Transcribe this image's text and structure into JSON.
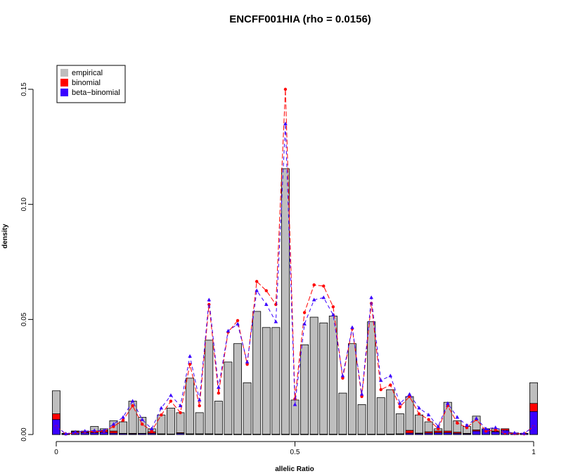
{
  "chart_data": {
    "type": "bar",
    "title": "ENCFF001HIA (rho = 0.0156)",
    "xlabel": "allelic Ratio",
    "ylabel": "density",
    "xlim": [
      -0.01,
      1.01
    ],
    "ylim": [
      0,
      0.15
    ],
    "x_ticks": [
      {
        "v": 0,
        "label": "0"
      },
      {
        "v": 0.5,
        "label": "0.5"
      },
      {
        "v": 1,
        "label": "1"
      }
    ],
    "y_ticks": [
      {
        "v": 0,
        "label": "0.00"
      },
      {
        "v": 0.05,
        "label": "0.05"
      },
      {
        "v": 0.1,
        "label": "0.10"
      },
      {
        "v": 0.15,
        "label": "0.15"
      }
    ],
    "legend": {
      "position": "top-left",
      "entries": [
        {
          "label": "empirical",
          "color": "#bebebe"
        },
        {
          "label": "binomial",
          "color": "#ff0000"
        },
        {
          "label": "beta−binomial",
          "color": "#3a00ff"
        }
      ]
    },
    "colors": {
      "empirical": "#bebebe",
      "binomial": "#ff0000",
      "beta_binomial": "#3a00ff",
      "bar_border": "#000000"
    },
    "bin_width": 0.02,
    "x": [
      0,
      0.02,
      0.04,
      0.06,
      0.08,
      0.1,
      0.12,
      0.14,
      0.16,
      0.18,
      0.2,
      0.22,
      0.24,
      0.26,
      0.28,
      0.3,
      0.32,
      0.34,
      0.36,
      0.38,
      0.4,
      0.42,
      0.44,
      0.46,
      0.48,
      0.5,
      0.52,
      0.54,
      0.56,
      0.58,
      0.6,
      0.62,
      0.64,
      0.66,
      0.68,
      0.7,
      0.72,
      0.74,
      0.76,
      0.78,
      0.8,
      0.82,
      0.84,
      0.86,
      0.88,
      0.9,
      0.92,
      0.94,
      0.96,
      0.98,
      1.0
    ],
    "series": [
      {
        "name": "empirical",
        "values": [
          0.019,
          0.0005,
          0.0015,
          0.0015,
          0.0035,
          0.0025,
          0.006,
          0.0055,
          0.0145,
          0.0075,
          0.0025,
          0.0085,
          0.0115,
          0.0095,
          0.0245,
          0.0095,
          0.041,
          0.0145,
          0.0315,
          0.0395,
          0.0225,
          0.0535,
          0.0465,
          0.0465,
          0.1155,
          0.015,
          0.039,
          0.051,
          0.0485,
          0.0515,
          0.018,
          0.0395,
          0.013,
          0.049,
          0.016,
          0.0195,
          0.009,
          0.0165,
          0.0085,
          0.0055,
          0.0025,
          0.014,
          0.006,
          0.0035,
          0.008,
          0.002,
          0.0025,
          0.001,
          0.0005,
          0.0005,
          0.0225
        ]
      },
      {
        "name": "binomial",
        "values": [
          0.009,
          0.0004,
          0.0015,
          0.0012,
          0.0015,
          0.0018,
          0.0015,
          0.0005,
          0.0005,
          0.0005,
          0.0012,
          0.0003,
          0.0002,
          0.0008,
          0.0003,
          0.0003,
          0.0003,
          0.0002,
          0.0001,
          0.0001,
          0.0001,
          0.0001,
          0.0001,
          0.0001,
          0.0001,
          0.0001,
          0.0001,
          0.0001,
          0.0001,
          0.0001,
          0.0001,
          0.0001,
          0.0001,
          0.0001,
          0.0001,
          0.0002,
          0.0003,
          0.0018,
          0.0006,
          0.0012,
          0.0015,
          0.0015,
          0.001,
          0.0005,
          0.002,
          0.0015,
          0.0015,
          0.0025,
          0.0007,
          0.0005,
          0.0135
        ]
      },
      {
        "name": "beta−binomial",
        "values": [
          0.0065,
          0.0003,
          0.0012,
          0.0008,
          0.0008,
          0.001,
          0.0006,
          0.0004,
          0.0003,
          0.0004,
          0.0005,
          0.0002,
          0.0002,
          0.0005,
          0.0002,
          0.0002,
          0.0002,
          0.0001,
          0.0001,
          0.0001,
          0.0001,
          0.0001,
          0.0001,
          0.0001,
          0.0001,
          0.0001,
          0.0001,
          0.0001,
          0.0001,
          0.0001,
          0.0001,
          0.0001,
          0.0001,
          0.0001,
          0.0001,
          0.0001,
          0.0002,
          0.0006,
          0.0004,
          0.0006,
          0.0008,
          0.0008,
          0.0005,
          0.0003,
          0.0015,
          0.0025,
          0.0012,
          0.0018,
          0.0005,
          0.0004,
          0.01
        ]
      }
    ],
    "lines": [
      {
        "name": "binomial",
        "x": [
          0,
          0.02,
          0.04,
          0.06,
          0.08,
          0.1,
          0.12,
          0.14,
          0.16,
          0.18,
          0.2,
          0.22,
          0.24,
          0.26,
          0.28,
          0.3,
          0.32,
          0.34,
          0.36,
          0.38,
          0.4,
          0.42,
          0.44,
          0.46,
          0.48,
          0.5,
          0.52,
          0.54,
          0.56,
          0.58,
          0.6,
          0.62,
          0.64,
          0.66,
          0.68,
          0.7,
          0.72,
          0.74,
          0.76,
          0.78,
          0.8,
          0.82,
          0.84,
          0.86,
          0.88,
          0.9,
          0.92,
          0.94,
          0.96,
          0.98,
          1.0
        ],
        "y": [
          0.0035,
          0.0002,
          0.0008,
          0.0012,
          0.0014,
          0.0014,
          0.0035,
          0.0062,
          0.0125,
          0.0045,
          0.0015,
          0.0085,
          0.0145,
          0.0095,
          0.0305,
          0.0125,
          0.0565,
          0.018,
          0.0445,
          0.0495,
          0.0305,
          0.0665,
          0.0625,
          0.0565,
          0.15,
          0.0155,
          0.053,
          0.065,
          0.0645,
          0.0555,
          0.0245,
          0.046,
          0.0165,
          0.057,
          0.0195,
          0.0215,
          0.012,
          0.0165,
          0.009,
          0.0065,
          0.0025,
          0.0125,
          0.005,
          0.003,
          0.0065,
          0.0015,
          0.002,
          0.0007,
          0.0004,
          0.0003,
          0.0035
        ]
      },
      {
        "name": "beta−binomial",
        "x": [
          0,
          0.02,
          0.04,
          0.06,
          0.08,
          0.1,
          0.12,
          0.14,
          0.16,
          0.18,
          0.2,
          0.22,
          0.24,
          0.26,
          0.28,
          0.3,
          0.32,
          0.34,
          0.36,
          0.38,
          0.4,
          0.42,
          0.44,
          0.46,
          0.48,
          0.5,
          0.52,
          0.54,
          0.56,
          0.58,
          0.6,
          0.62,
          0.64,
          0.66,
          0.68,
          0.7,
          0.72,
          0.74,
          0.76,
          0.78,
          0.8,
          0.82,
          0.84,
          0.86,
          0.88,
          0.9,
          0.92,
          0.94,
          0.96,
          0.98,
          1.0
        ],
        "y": [
          0.0035,
          0.0003,
          0.0011,
          0.0015,
          0.0017,
          0.0017,
          0.0045,
          0.0075,
          0.0145,
          0.0065,
          0.0025,
          0.0115,
          0.017,
          0.0125,
          0.034,
          0.015,
          0.0585,
          0.0205,
          0.045,
          0.048,
          0.0315,
          0.0625,
          0.0565,
          0.049,
          0.135,
          0.013,
          0.048,
          0.0585,
          0.0595,
          0.052,
          0.0255,
          0.0465,
          0.0175,
          0.0595,
          0.0235,
          0.0255,
          0.0135,
          0.0175,
          0.0115,
          0.0085,
          0.0035,
          0.0135,
          0.0075,
          0.004,
          0.007,
          0.0025,
          0.003,
          0.0012,
          0.0007,
          0.0005,
          0.0035
        ]
      }
    ]
  }
}
